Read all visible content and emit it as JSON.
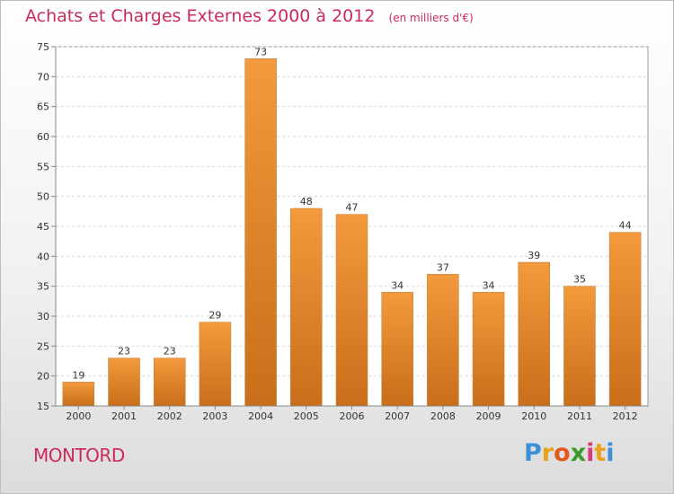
{
  "title": "Achats et Charges Externes 2000 à 2012",
  "subtitle": "(en milliers d'€)",
  "location": "MONTORD",
  "logo": {
    "letters": [
      "P",
      "r",
      "o",
      "x",
      "i",
      "t",
      "i"
    ],
    "colors": [
      "#3d8fd6",
      "#e8a21c",
      "#e05a1e",
      "#3a9a2a",
      "#d63c7a",
      "#e8a21c",
      "#3d8fd6"
    ]
  },
  "colors": {
    "bar": "#f29a3c",
    "bar_dark": "#c96e1a",
    "title": "#cc2a5a"
  },
  "chart_data": {
    "type": "bar",
    "categories": [
      "2000",
      "2001",
      "2002",
      "2003",
      "2004",
      "2005",
      "2006",
      "2007",
      "2008",
      "2009",
      "2010",
      "2011",
      "2012"
    ],
    "values": [
      19,
      23,
      23,
      29,
      73,
      48,
      47,
      34,
      37,
      34,
      39,
      35,
      44
    ],
    "ylim": [
      15,
      75
    ],
    "yticks": [
      15,
      20,
      25,
      30,
      35,
      40,
      45,
      50,
      55,
      60,
      65,
      70,
      75
    ],
    "grid": true,
    "legend": "none"
  }
}
